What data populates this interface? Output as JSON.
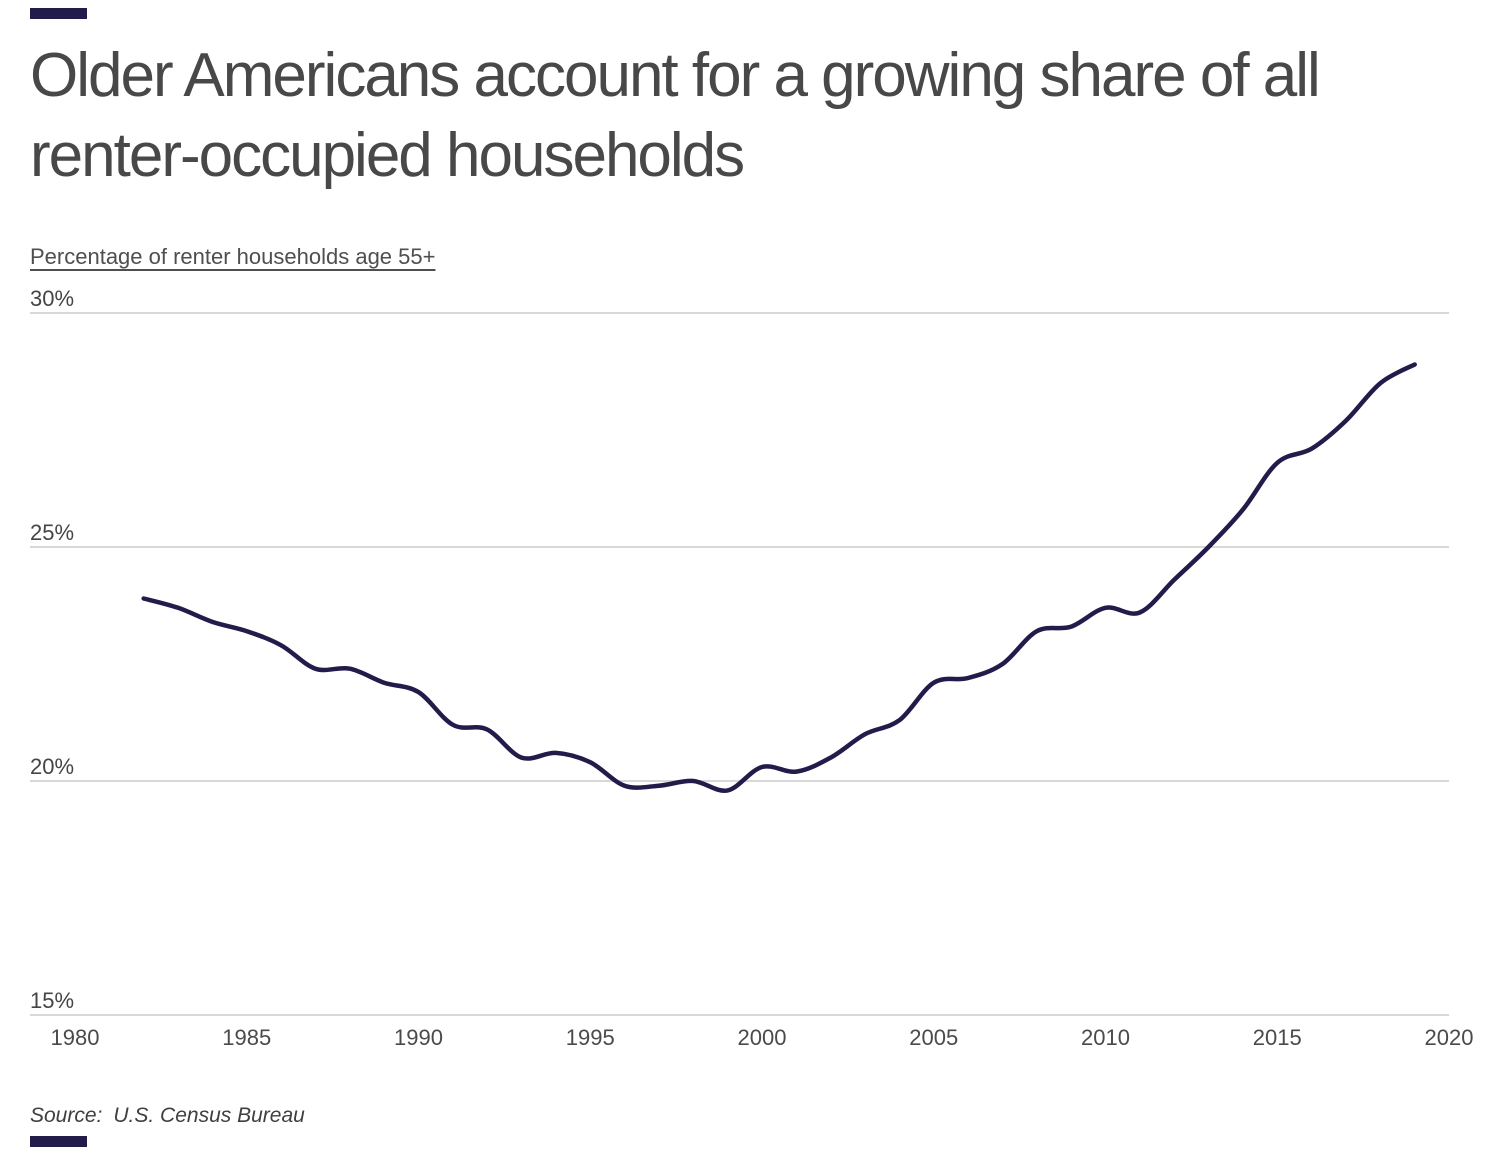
{
  "header": {
    "title_lines": [
      "Older Americans account for a growing share of all",
      "renter-occupied households"
    ]
  },
  "footer": {
    "source_label": "Source:",
    "source_value": "U.S. Census Bureau"
  },
  "colors": {
    "accent_navy": "#211c4a",
    "line": "#211c4a",
    "gridline": "#d8d8d8",
    "title_text": "#484848",
    "tick_text": "#4a4a4a"
  },
  "chart_data": {
    "type": "line",
    "title": "Older Americans account for a growing share of all renter-occupied households",
    "ylabel": "Percentage of renter households age 55+",
    "xlabel": "",
    "legend_position": "none",
    "grid": "horizontal",
    "xlim": [
      1980,
      2020
    ],
    "ylim": [
      15,
      30
    ],
    "x_ticks": [
      1980,
      1985,
      1990,
      1995,
      2000,
      2005,
      2010,
      2015,
      2020
    ],
    "y_ticks": [
      {
        "value": 30,
        "label": "30%"
      },
      {
        "value": 25,
        "label": "25%"
      },
      {
        "value": 20,
        "label": "20%"
      },
      {
        "value": 15,
        "label": "15%"
      }
    ],
    "x": [
      1982,
      1983,
      1984,
      1985,
      1986,
      1987,
      1988,
      1989,
      1990,
      1991,
      1992,
      1993,
      1994,
      1995,
      1996,
      1997,
      1998,
      1999,
      2000,
      2001,
      2002,
      2003,
      2004,
      2005,
      2006,
      2007,
      2008,
      2009,
      2010,
      2011,
      2012,
      2013,
      2014,
      2015,
      2016,
      2017,
      2018,
      2019
    ],
    "series": [
      {
        "name": "Percentage of renter households age 55+",
        "values": [
          23.9,
          23.7,
          23.4,
          23.2,
          22.9,
          22.4,
          22.4,
          22.1,
          21.9,
          21.2,
          21.1,
          20.5,
          20.6,
          20.4,
          19.9,
          19.9,
          20.0,
          19.8,
          20.3,
          20.2,
          20.5,
          21.0,
          21.3,
          22.1,
          22.2,
          22.5,
          23.2,
          23.3,
          23.7,
          23.6,
          24.3,
          25.0,
          25.8,
          26.8,
          27.1,
          27.7,
          28.5,
          28.9
        ]
      }
    ]
  }
}
